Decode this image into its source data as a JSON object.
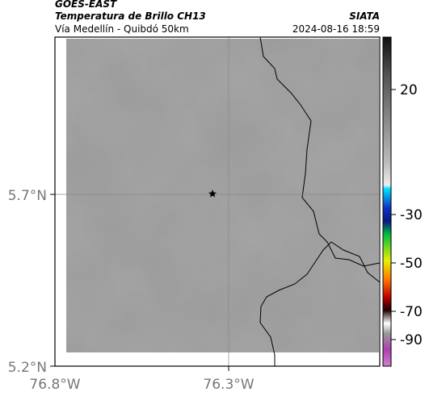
{
  "header": {
    "satellite": "GOES-EAST",
    "product": "Temperatura de Brillo CH13",
    "region": "Vía Medellín - Quibdó 50km",
    "source": "SIATA",
    "timestamp": "2024-08-16 18:59"
  },
  "map": {
    "lat_ticks": [
      "5.7°N",
      "5.2°N"
    ],
    "lon_ticks": [
      "76.8°W",
      "76.3°W"
    ]
  },
  "colorbar": {
    "ticks": [
      20,
      -30,
      -50,
      -70,
      -90
    ]
  }
}
